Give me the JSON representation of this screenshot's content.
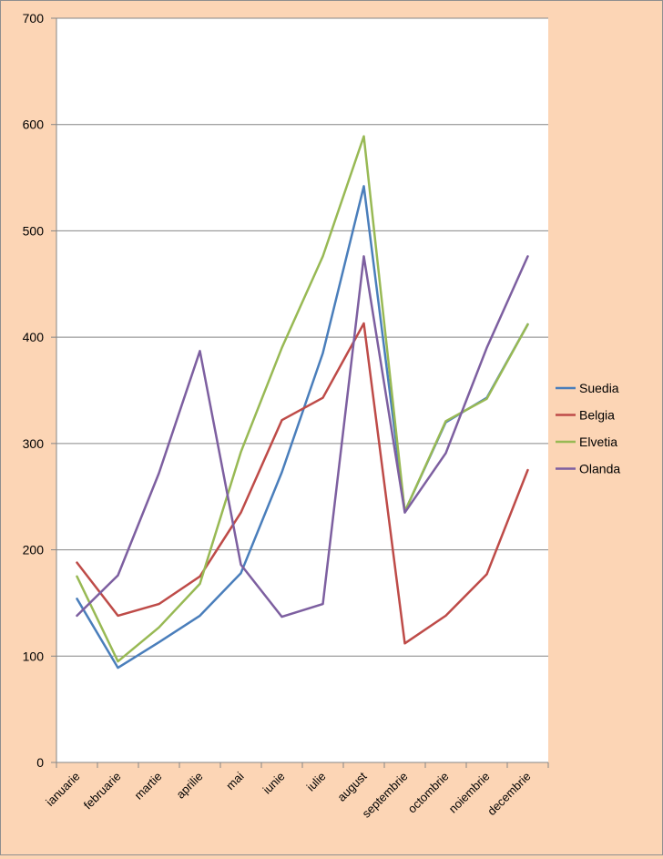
{
  "chart_data": {
    "type": "line",
    "title": "",
    "xlabel": "",
    "ylabel": "",
    "ylim": [
      0,
      700
    ],
    "yticks": [
      "0",
      "100",
      "200",
      "300",
      "400",
      "500",
      "600",
      "700"
    ],
    "grid": true,
    "legend_position": "right",
    "categories": [
      "ianuarie",
      "februarie",
      "martie",
      "aprilie",
      "mai",
      "iunie",
      "iulie",
      "august",
      "septembrie",
      "octombrie",
      "noiembrie",
      "decembrie"
    ],
    "series": [
      {
        "name": "Suedia",
        "color": "#4a7ebb",
        "values": [
          154,
          89,
          113,
          138,
          178,
          273,
          385,
          542,
          236,
          320,
          343,
          412
        ]
      },
      {
        "name": "Belgia",
        "color": "#be4b48",
        "values": [
          188,
          138,
          149,
          175,
          235,
          322,
          343,
          413,
          112,
          138,
          177,
          275
        ]
      },
      {
        "name": "Elvetia",
        "color": "#98b954",
        "values": [
          175,
          95,
          127,
          168,
          292,
          390,
          476,
          589,
          236,
          321,
          342,
          412
        ]
      },
      {
        "name": "Olanda",
        "color": "#7d5fa0",
        "values": [
          138,
          176,
          272,
          387,
          186,
          137,
          149,
          476,
          235,
          291,
          390,
          476
        ]
      }
    ],
    "colors": {
      "background": "#fcd5b5",
      "plot_area": "#ffffff",
      "gridline": "#868686"
    }
  }
}
